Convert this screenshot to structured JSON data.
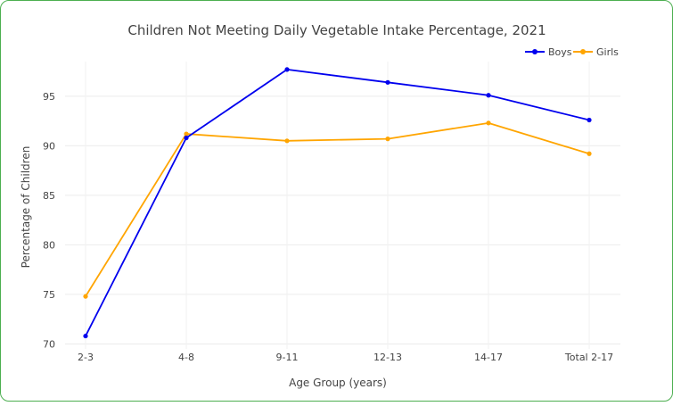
{
  "chart_data": {
    "type": "line",
    "title": "Children Not Meeting Daily Vegetable Intake Percentage, 2021",
    "xlabel": "Age Group (years)",
    "ylabel": "Percentage of Children",
    "categories": [
      "2-3",
      "4-8",
      "9-11",
      "12-13",
      "14-17",
      "Total 2-17"
    ],
    "y_ticks": [
      70,
      75,
      80,
      85,
      90,
      95
    ],
    "ylim": [
      69.5,
      98.5
    ],
    "grid": true,
    "legend_position": "top-right",
    "series": [
      {
        "name": "Boys",
        "color": "#0000ee",
        "values": [
          70.8,
          90.8,
          97.7,
          96.4,
          95.1,
          92.6
        ]
      },
      {
        "name": "Girls",
        "color": "#ffa500",
        "values": [
          74.8,
          91.2,
          90.5,
          90.7,
          92.3,
          89.2
        ]
      }
    ]
  }
}
